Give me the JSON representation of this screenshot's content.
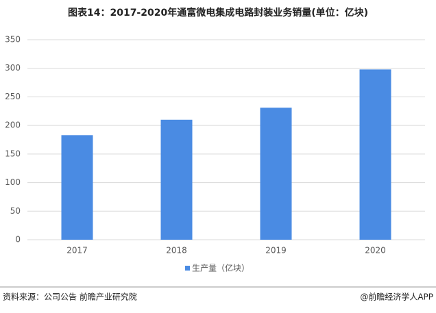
{
  "chart_data": {
    "type": "bar",
    "title": "图表14：2017-2020年通富微电集成电路封装业务销量(单位：亿块)",
    "categories": [
      "2017",
      "2018",
      "2019",
      "2020"
    ],
    "series": [
      {
        "name": "生产量（亿块）",
        "color": "#4a8be3",
        "values": [
          183,
          210,
          231,
          298
        ]
      }
    ],
    "ylim": [
      0,
      350
    ],
    "yticks": [
      0,
      50,
      100,
      150,
      200,
      250,
      300,
      350
    ],
    "grid": true,
    "legend": "bottom",
    "source": "资料来源：公司公告 前瞻产业研究院",
    "credit": "@前瞻经济学人APP"
  }
}
